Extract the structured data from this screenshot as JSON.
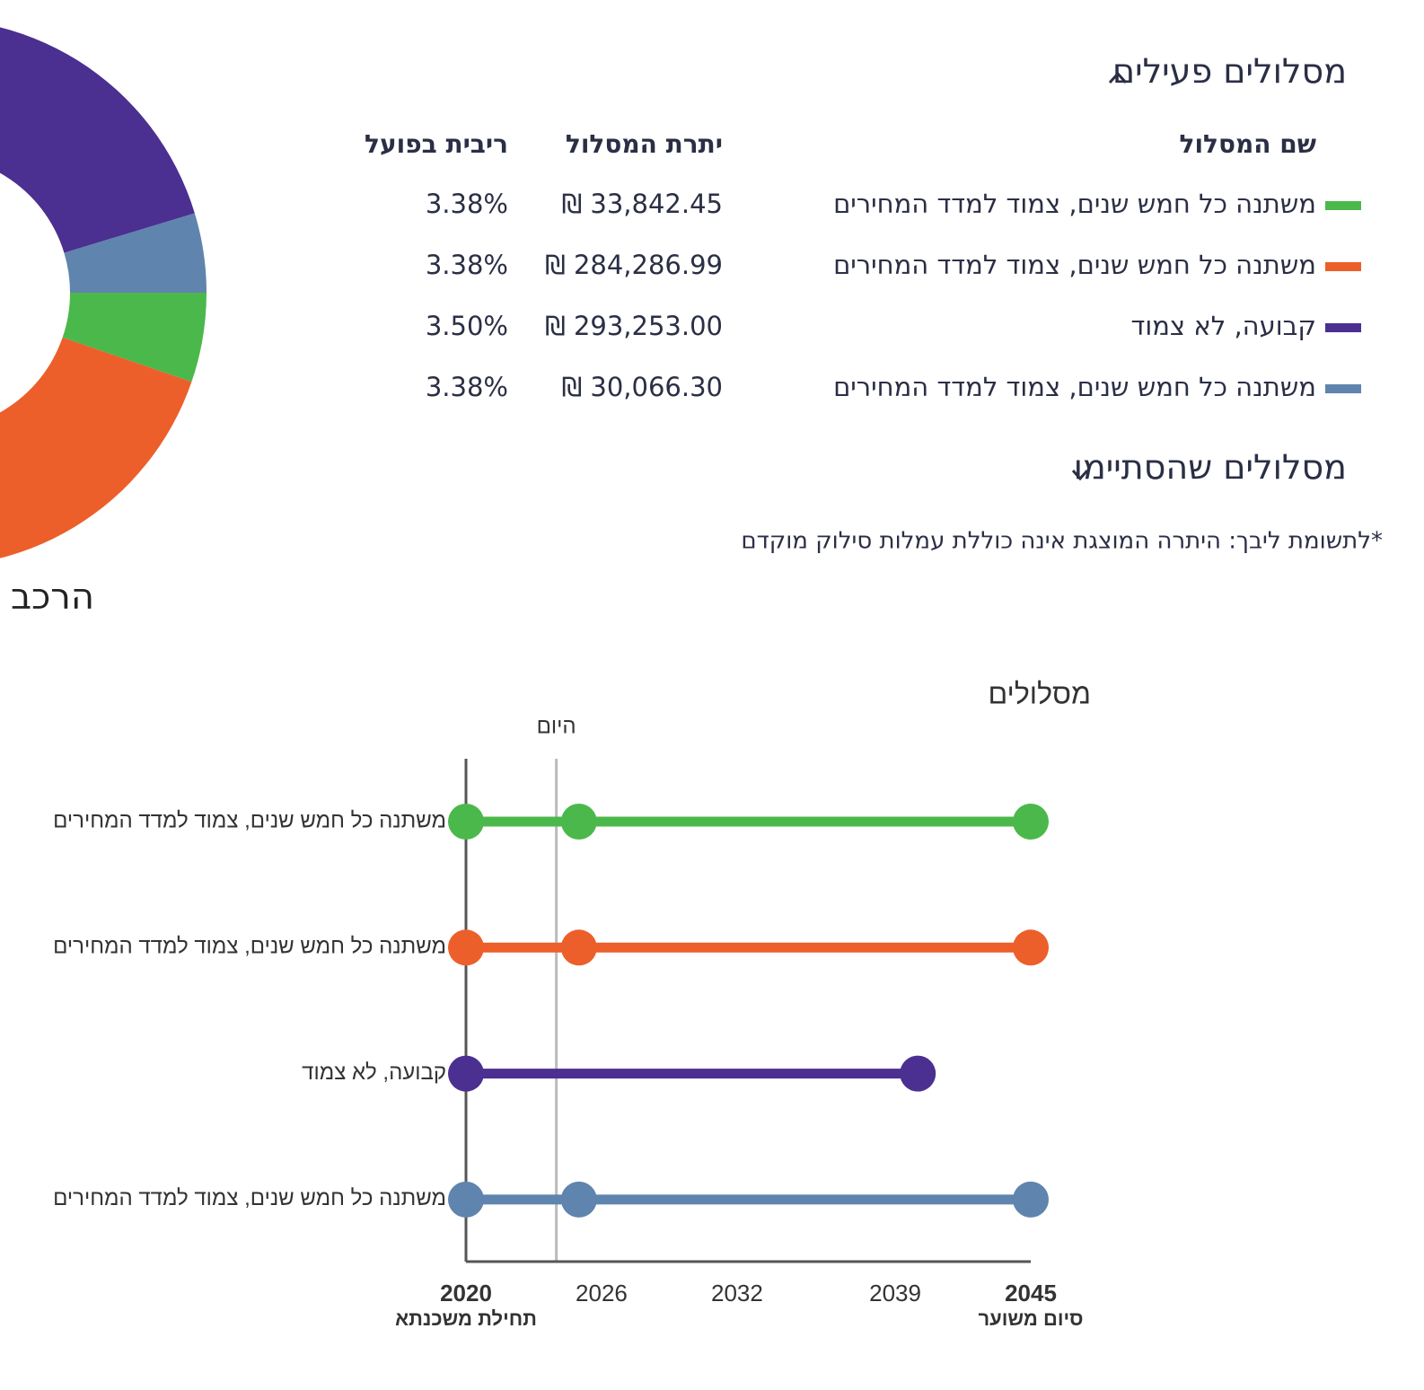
{
  "active_section": {
    "title": "מסלולים פעילים"
  },
  "ended_section": {
    "title": "מסלולים שהסתיימו"
  },
  "table": {
    "headers": [
      "שם המסלול",
      "יתרת המסלול",
      "ריבית בפועל"
    ],
    "rows": [
      [
        "משתנה כל חמש שנים, צמוד למדד המחירים",
        "33,842.45 ₪",
        "3.38%"
      ],
      [
        "משתנה כל חמש שנים, צמוד למדד המחירים",
        "284,286.99 ₪",
        "3.38%"
      ],
      [
        "קבועה, לא צמוד",
        "293,253.00 ₪",
        "3.50%"
      ],
      [
        "משתנה כל חמש שנים, צמוד למדד המחירים",
        "30,066.30 ₪",
        "3.38%"
      ]
    ]
  },
  "note": "*לתשומת ליבך: היתרה המוצגת אינה כוללת עמלות סילוק מוקדם",
  "chart_data": [
    {
      "type": "donut",
      "title": "הרכב המשכנתא",
      "values": [
        33842.45,
        284286.99,
        293253.0,
        30066.3
      ],
      "colors": [
        "#4bb84b",
        "#ec5f2a",
        "#4b2f91",
        "#5f84ad"
      ]
    },
    {
      "type": "dot-range",
      "title": "מסלולים",
      "series": [
        {
          "name": "משתנה כל חמש שנים, צמוד למדד המחירים",
          "color": "#4bb84b",
          "values": [
            2020,
            2025,
            2045
          ]
        },
        {
          "name": "משתנה כל חמש שנים, צמוד למדד המחירים",
          "color": "#ec5f2a",
          "values": [
            2020,
            2025,
            2045
          ]
        },
        {
          "name": "קבועה, לא צמוד",
          "color": "#4b2f91",
          "values": [
            2020,
            2040
          ]
        },
        {
          "name": "משתנה כל חמש שנים, צמוד למדד המחירים",
          "color": "#5f84ad",
          "values": [
            2020,
            2025,
            2045
          ]
        }
      ],
      "xlim": [
        2020,
        2045
      ],
      "xticks": [
        2020,
        2026,
        2032,
        2039,
        2045
      ],
      "xtick_notes": [
        {
          "value": 2020,
          "label": "תחילת משכנתא"
        },
        {
          "value": 2045,
          "label": "סיום משוער"
        }
      ],
      "today": {
        "value": 2024,
        "label": "היום"
      }
    }
  ]
}
